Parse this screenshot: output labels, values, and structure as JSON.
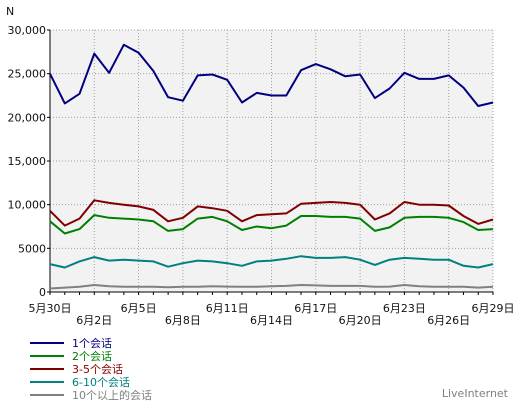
{
  "chart_data": {
    "type": "line",
    "ylabel": "N",
    "ylim": [
      0,
      30000
    ],
    "yticks": [
      0,
      5000,
      10000,
      15000,
      20000,
      25000,
      30000
    ],
    "ytick_labels": [
      "0",
      "5000",
      "10,000",
      "15,000",
      "20,000",
      "25,000",
      "30,000"
    ],
    "x_dates": [
      "5月30日",
      "5月31日",
      "6月1日",
      "6月2日",
      "6月3日",
      "6月4日",
      "6月5日",
      "6月6日",
      "6月7日",
      "6月8日",
      "6月9日",
      "6月10日",
      "6月11日",
      "6月12日",
      "6月13日",
      "6月14日",
      "6月15日",
      "6月16日",
      "6月17日",
      "6月18日",
      "6月19日",
      "6月20日",
      "6月21日",
      "6月22日",
      "6月23日",
      "6月24日",
      "6月25日",
      "6月26日",
      "6月27日",
      "6月28日",
      "6月29日"
    ],
    "xtick_labels": [
      {
        "index": 0,
        "label": "5月30日",
        "row": 1
      },
      {
        "index": 3,
        "label": "6月2日",
        "row": 2
      },
      {
        "index": 6,
        "label": "6月5日",
        "row": 1
      },
      {
        "index": 9,
        "label": "6月8日",
        "row": 2
      },
      {
        "index": 12,
        "label": "6月11日",
        "row": 1
      },
      {
        "index": 15,
        "label": "6月14日",
        "row": 2
      },
      {
        "index": 18,
        "label": "6月17日",
        "row": 1
      },
      {
        "index": 21,
        "label": "6月20日",
        "row": 2
      },
      {
        "index": 24,
        "label": "6月23日",
        "row": 1
      },
      {
        "index": 27,
        "label": "6月26日",
        "row": 2
      },
      {
        "index": 30,
        "label": "6月29日",
        "row": 1
      }
    ],
    "grid": true,
    "legend_position": "bottom-left",
    "series": [
      {
        "name": "1个会话",
        "color": "#000080",
        "values": [
          25000,
          21600,
          22700,
          27300,
          25100,
          28300,
          27400,
          25300,
          22300,
          21900,
          24800,
          24900,
          24300,
          21700,
          22800,
          22500,
          22500,
          25400,
          26100,
          25500,
          24700,
          24900,
          22200,
          23300,
          25100,
          24400,
          24400,
          24800,
          23400,
          21300,
          21700
        ]
      },
      {
        "name": "2个会话",
        "color": "#008000",
        "values": [
          8100,
          6700,
          7200,
          8800,
          8500,
          8400,
          8300,
          8100,
          7000,
          7200,
          8400,
          8600,
          8100,
          7100,
          7500,
          7300,
          7600,
          8700,
          8700,
          8600,
          8600,
          8400,
          7000,
          7400,
          8500,
          8600,
          8600,
          8500,
          8000,
          7100,
          7200
        ]
      },
      {
        "name": "3-5个会话",
        "color": "#800000",
        "values": [
          9300,
          7600,
          8400,
          10500,
          10200,
          10000,
          9800,
          9400,
          8100,
          8500,
          9800,
          9600,
          9300,
          8100,
          8800,
          8900,
          9000,
          10100,
          10200,
          10300,
          10200,
          10000,
          8300,
          9000,
          10300,
          10000,
          10000,
          9900,
          8700,
          7800,
          8300
        ]
      },
      {
        "name": "6-10个会话",
        "color": "#008080",
        "values": [
          3200,
          2800,
          3500,
          4000,
          3600,
          3700,
          3600,
          3500,
          2900,
          3300,
          3600,
          3500,
          3300,
          3000,
          3500,
          3600,
          3800,
          4100,
          3900,
          3900,
          4000,
          3700,
          3100,
          3700,
          3900,
          3800,
          3700,
          3700,
          3000,
          2800,
          3200
        ]
      },
      {
        "name": "10个以上的会话",
        "color": "#808080",
        "values": [
          400,
          500,
          600,
          800,
          650,
          600,
          600,
          600,
          550,
          600,
          600,
          650,
          620,
          600,
          600,
          650,
          700,
          800,
          750,
          700,
          700,
          700,
          600,
          620,
          800,
          650,
          600,
          600,
          600,
          500,
          600
        ]
      }
    ]
  },
  "branding": {
    "label": "LiveInternet"
  }
}
